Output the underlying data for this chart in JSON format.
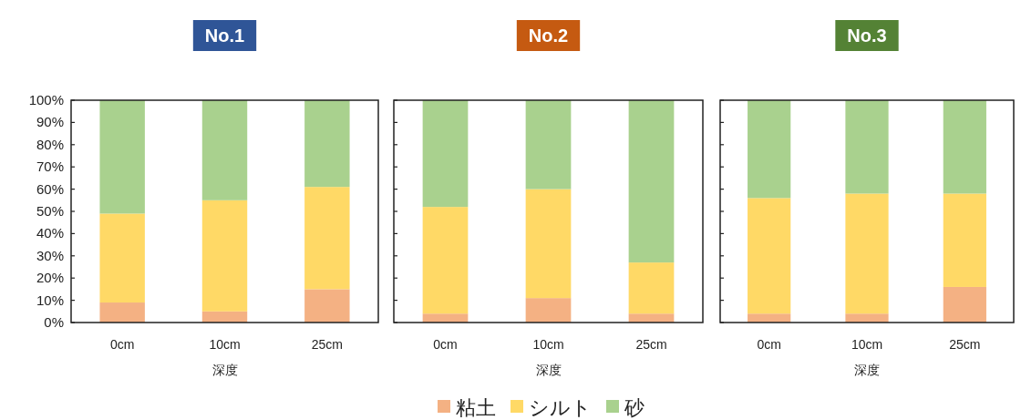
{
  "chart_data": [
    {
      "type": "bar",
      "stacked": true,
      "title": "No.1",
      "xlabel": "深度",
      "categories": [
        "0cm",
        "10cm",
        "25cm"
      ],
      "ylim": [
        0,
        100
      ],
      "yticks": [
        {
          "value": 0,
          "label": "0%"
        },
        {
          "value": 10,
          "label": "10%"
        },
        {
          "value": 20,
          "label": "20%"
        },
        {
          "value": 30,
          "label": "30%"
        },
        {
          "value": 40,
          "label": "40%"
        },
        {
          "value": 50,
          "label": "50%"
        },
        {
          "value": 60,
          "label": "60%"
        },
        {
          "value": 70,
          "label": "70%"
        },
        {
          "value": 80,
          "label": "80%"
        },
        {
          "value": 90,
          "label": "90%"
        },
        {
          "value": 100,
          "label": "100%"
        }
      ],
      "series": [
        {
          "color": "#f4b183",
          "values": [
            9,
            5,
            15
          ]
        },
        {
          "color": "#ffd966",
          "values": [
            40,
            50,
            46
          ]
        },
        {
          "color": "#a9d18e",
          "values": [
            51,
            45,
            39
          ]
        }
      ]
    },
    {
      "type": "bar",
      "stacked": true,
      "title": "No.2",
      "xlabel": "深度",
      "categories": [
        "0cm",
        "10cm",
        "25cm"
      ],
      "ylim": [
        0,
        100
      ],
      "yticks": [
        {
          "value": 0,
          "label": null
        },
        {
          "value": 10,
          "label": null
        },
        {
          "value": 20,
          "label": null
        },
        {
          "value": 30,
          "label": null
        },
        {
          "value": 40,
          "label": null
        },
        {
          "value": 50,
          "label": null
        },
        {
          "value": 60,
          "label": null
        },
        {
          "value": 70,
          "label": null
        },
        {
          "value": 80,
          "label": null
        },
        {
          "value": 90,
          "label": null
        },
        {
          "value": 100,
          "label": null
        }
      ],
      "tick_labels": "x",
      "legend": "bottom",
      "series": [
        {
          "name": "粘土",
          "color": "#f4b183",
          "values": [
            4,
            11,
            4
          ]
        },
        {
          "name": "シルト",
          "color": "#ffd966",
          "values": [
            48,
            49,
            23
          ]
        },
        {
          "name": "砂",
          "color": "#a9d18e",
          "values": [
            48,
            40,
            73
          ]
        }
      ]
    },
    {
      "type": "bar",
      "stacked": true,
      "title": "No.3",
      "xlabel": "深度",
      "categories": [
        "0cm",
        "10cm",
        "25cm"
      ],
      "ylim": [
        0,
        100
      ],
      "yticks": [
        {
          "value": 0,
          "label": null
        },
        {
          "value": 10,
          "label": null
        },
        {
          "value": 20,
          "label": null
        },
        {
          "value": 30,
          "label": null
        },
        {
          "value": 40,
          "label": null
        },
        {
          "value": 50,
          "label": null
        },
        {
          "value": 60,
          "label": null
        },
        {
          "value": 70,
          "label": null
        },
        {
          "value": 80,
          "label": null
        },
        {
          "value": 90,
          "label": null
        },
        {
          "value": 100,
          "label": null
        }
      ],
      "tick_labels": "x",
      "series": [
        {
          "color": "#f4b183",
          "values": [
            4,
            4,
            16
          ]
        },
        {
          "color": "#ffd966",
          "values": [
            52,
            54,
            42
          ]
        },
        {
          "color": "#a9d18e",
          "values": [
            44,
            42,
            42
          ]
        }
      ]
    }
  ]
}
